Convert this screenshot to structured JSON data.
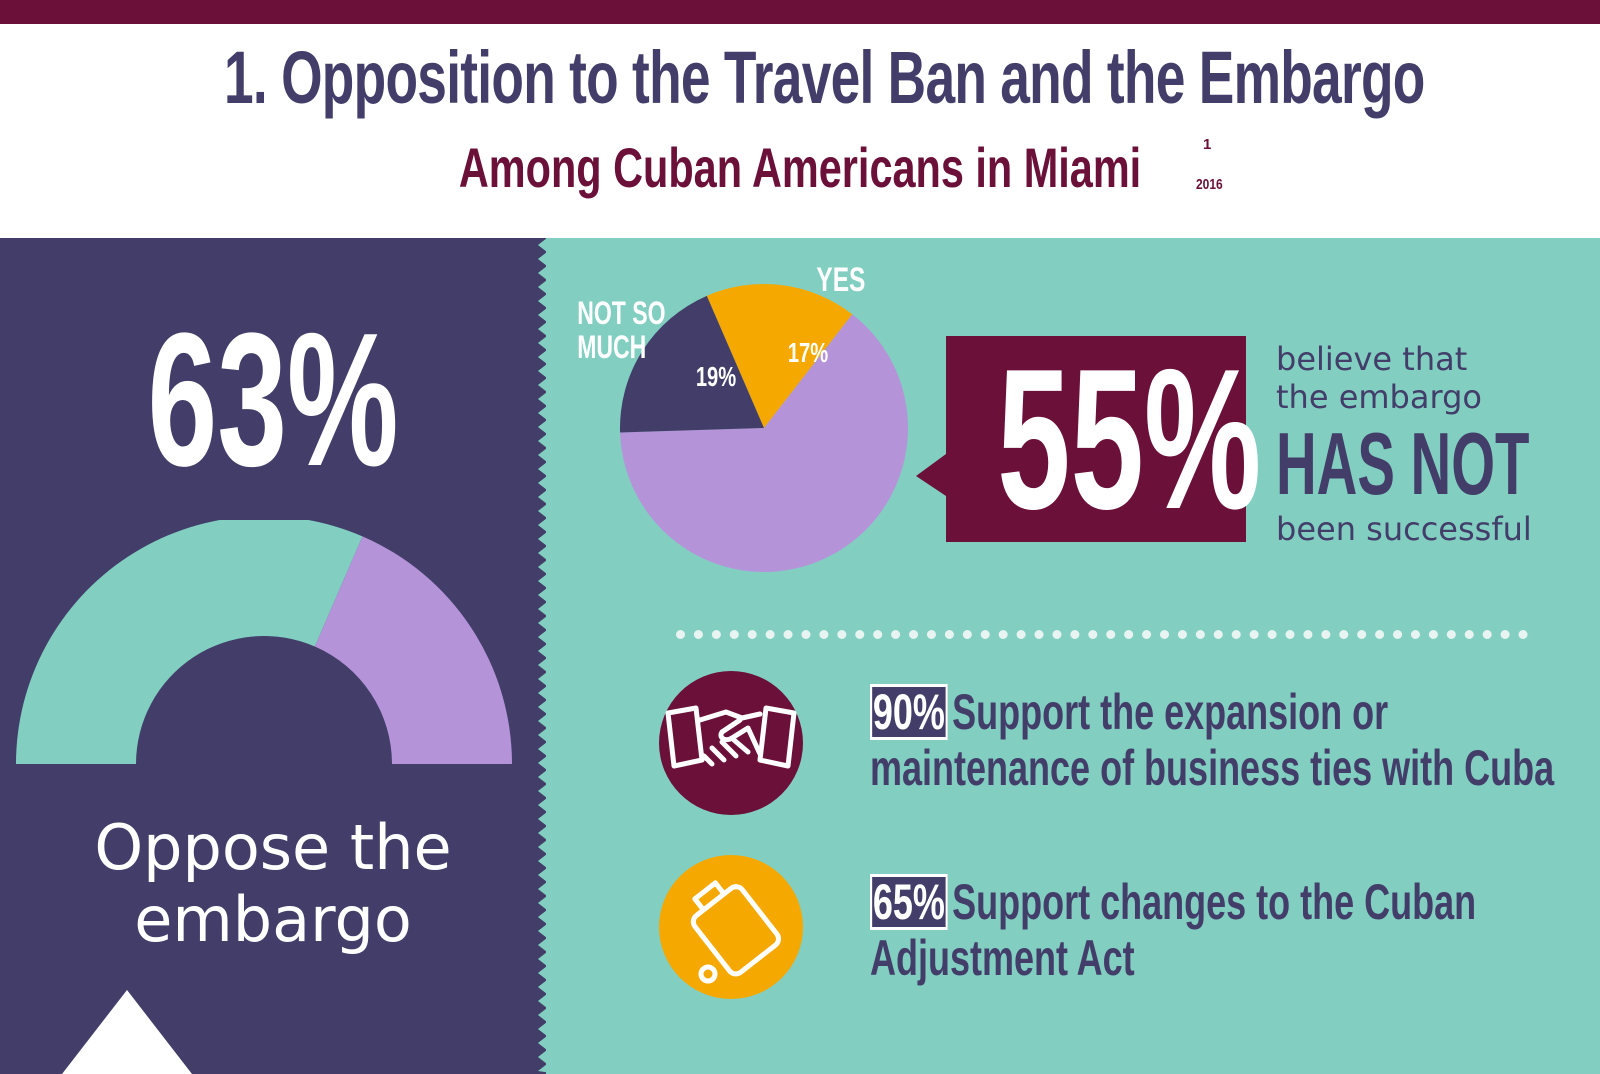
{
  "header": {
    "title": "1. Opposition to the Travel Ban and the Embargo",
    "subtitle": "Among Cuban Americans in Miami",
    "footnote_marker": "1",
    "year": "2016"
  },
  "colors": {
    "navy": "#423d69",
    "maroon": "#6b1038",
    "teal": "#82cfc2",
    "lavender": "#b493d8",
    "orange": "#f5a800",
    "white": "#ffffff"
  },
  "left": {
    "big_value": "63%",
    "label_line1": "Oppose the",
    "label_line2": "embargo"
  },
  "callout": {
    "value": "55%",
    "line1": "believe that",
    "line2": "the embargo",
    "emphasis": "HAS NOT",
    "line3": "been successful"
  },
  "stats": [
    {
      "value": "90%",
      "text_line1": "Support the expansion or",
      "text_line2": "maintenance of business ties with Cuba",
      "icon": "handshake-icon"
    },
    {
      "value": "65%",
      "text_line1": "Support changes to the Cuban",
      "text_line2": "Adjustment Act",
      "icon": "suitcase-icon"
    }
  ],
  "chart_data": [
    {
      "type": "pie",
      "slices": [
        {
          "label": "YES",
          "value": 17,
          "value_label": "17%",
          "color": "#f5a800"
        },
        {
          "label": "",
          "value": 64,
          "value_label": "",
          "color": "#b493d8"
        },
        {
          "label": "NOT SO MUCH",
          "label_line1": "NOT SO",
          "label_line2": "MUCH",
          "value": 19,
          "value_label": "19%",
          "color": "#423d69"
        }
      ]
    },
    {
      "type": "pie",
      "form": "half-donut gauge",
      "slices": [
        {
          "label": "Oppose the embargo",
          "value": 63,
          "color": "#82cfc2"
        },
        {
          "label": "",
          "value": 37,
          "color": "#b493d8"
        }
      ]
    }
  ]
}
